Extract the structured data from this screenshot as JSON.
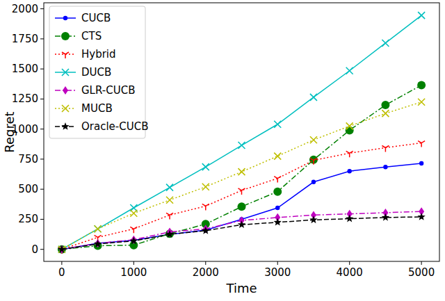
{
  "chart_data": {
    "type": "line",
    "x_label": "Time",
    "y_label": "Regret",
    "x": [
      0,
      500,
      1000,
      1500,
      2000,
      2500,
      3000,
      3500,
      4000,
      4500,
      5000
    ],
    "xlim": [
      -250,
      5250
    ],
    "ylim": [
      -100,
      2050
    ],
    "xticks": [
      0,
      1000,
      2000,
      3000,
      4000,
      5000
    ],
    "yticks": [
      0,
      250,
      500,
      750,
      1000,
      1250,
      1500,
      1750,
      2000
    ],
    "grid": false,
    "legend": "upper left",
    "series": [
      {
        "name": "CUCB",
        "color": "#0000ff",
        "marker": "circle",
        "line_style": "solid",
        "values": [
          0,
          50,
          75,
          125,
          160,
          250,
          345,
          560,
          650,
          685,
          715
        ]
      },
      {
        "name": "CTS",
        "color": "#008000",
        "marker": "big_circle",
        "line_style": "dashdot",
        "values": [
          0,
          30,
          35,
          130,
          210,
          355,
          480,
          745,
          990,
          1200,
          1365
        ]
      },
      {
        "name": "Hybrid",
        "color": "#ff0000",
        "marker": "tri_down",
        "line_style": "dotted",
        "values": [
          0,
          100,
          170,
          285,
          360,
          490,
          590,
          740,
          800,
          845,
          885
        ]
      },
      {
        "name": "DUCB",
        "color": "#00bfbf",
        "marker": "x",
        "line_style": "solid",
        "values": [
          0,
          170,
          345,
          515,
          685,
          865,
          1040,
          1265,
          1485,
          1715,
          1945
        ]
      },
      {
        "name": "GLR-CUCB",
        "color": "#bf00bf",
        "marker": "diamond",
        "line_style": "dashdot",
        "values": [
          0,
          50,
          80,
          145,
          170,
          240,
          265,
          285,
          295,
          305,
          315
        ]
      },
      {
        "name": "MUCB",
        "color": "#bfbf00",
        "marker": "x",
        "line_style": "dotted",
        "values": [
          0,
          170,
          300,
          410,
          520,
          645,
          775,
          910,
          1025,
          1130,
          1225
        ]
      },
      {
        "name": "Oracle-CUCB",
        "color": "#000000",
        "marker": "star",
        "line_style": "dashed",
        "values": [
          0,
          45,
          70,
          125,
          155,
          205,
          225,
          245,
          255,
          265,
          270
        ]
      }
    ]
  }
}
